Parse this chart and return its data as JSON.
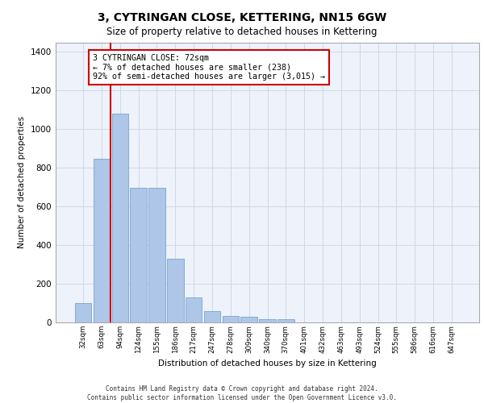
{
  "title": "3, CYTRINGAN CLOSE, KETTERING, NN15 6GW",
  "subtitle": "Size of property relative to detached houses in Kettering",
  "xlabel": "Distribution of detached houses by size in Kettering",
  "ylabel": "Number of detached properties",
  "categories": [
    "32sqm",
    "63sqm",
    "94sqm",
    "124sqm",
    "155sqm",
    "186sqm",
    "217sqm",
    "247sqm",
    "278sqm",
    "309sqm",
    "340sqm",
    "370sqm",
    "401sqm",
    "432sqm",
    "463sqm",
    "493sqm",
    "524sqm",
    "555sqm",
    "586sqm",
    "616sqm",
    "647sqm"
  ],
  "values": [
    100,
    845,
    1080,
    695,
    695,
    330,
    130,
    60,
    35,
    28,
    18,
    18,
    0,
    0,
    0,
    0,
    0,
    0,
    0,
    0,
    0
  ],
  "bar_color": "#aec6e8",
  "bar_edge_color": "#6699cc",
  "vline_color": "#cc0000",
  "vline_x": 1.5,
  "annotation_text": "3 CYTRINGAN CLOSE: 72sqm\n← 7% of detached houses are smaller (238)\n92% of semi-detached houses are larger (3,015) →",
  "annotation_box_color": "#ffffff",
  "annotation_box_edge": "#cc0000",
  "ylim": [
    0,
    1450
  ],
  "yticks": [
    0,
    200,
    400,
    600,
    800,
    1000,
    1200,
    1400
  ],
  "grid_color": "#d0d8e8",
  "bg_color": "#eef2fa",
  "footer_line1": "Contains HM Land Registry data © Crown copyright and database right 2024.",
  "footer_line2": "Contains public sector information licensed under the Open Government Licence v3.0."
}
